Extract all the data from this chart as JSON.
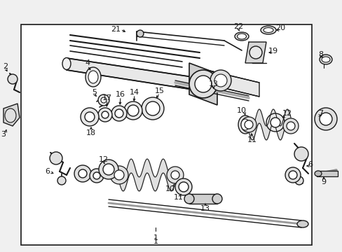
{
  "bg_color": "#f0f0f0",
  "box_facecolor": "#ffffff",
  "line_color": "#1a1a1a",
  "figsize": [
    4.89,
    3.6
  ],
  "dpi": 100,
  "xlim": [
    0,
    489
  ],
  "ylim": [
    0,
    360
  ]
}
